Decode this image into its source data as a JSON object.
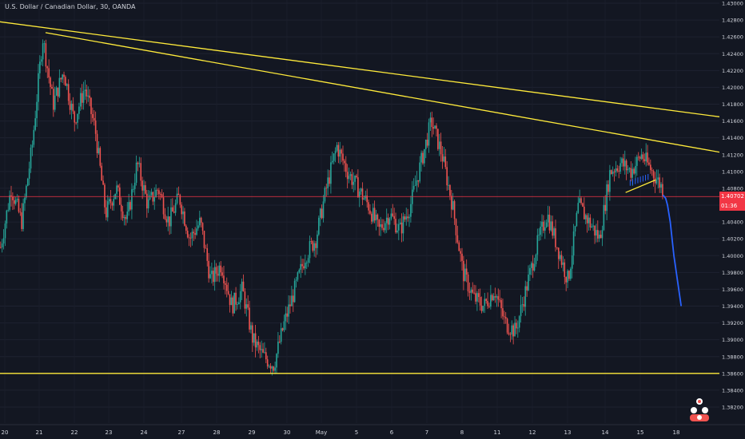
{
  "chart_title": "U.S. Dollar / Canadian Dollar, 30, OANDA",
  "colors": {
    "background": "#131722",
    "up": "#26a69a",
    "down": "#ef5350",
    "trendline": "#ffeb3b",
    "projection": "#2962ff",
    "price_line": "#f23645",
    "text": "#d1d4dc"
  },
  "price_label": {
    "value": "1.40702",
    "countdown": "01:36"
  },
  "chart_data": {
    "type": "candlestick",
    "symbol": "USDCAD",
    "interval": "30",
    "broker": "OANDA",
    "ylim": [
      1.382,
      1.43
    ],
    "yticks": [
      "1.43000",
      "1.42800",
      "1.42600",
      "1.42400",
      "1.42200",
      "1.42000",
      "1.41800",
      "1.41600",
      "1.41400",
      "1.41200",
      "1.41000",
      "1.40800",
      "1.40600",
      "1.40400",
      "1.40200",
      "1.40000",
      "1.39800",
      "1.39600",
      "1.39400",
      "1.39200",
      "1.39000",
      "1.38800",
      "1.38600",
      "1.38400",
      "1.38200"
    ],
    "xticks": [
      "20",
      "21",
      "22",
      "23",
      "24",
      "27",
      "28",
      "29",
      "30",
      "May",
      "5",
      "6",
      "7",
      "8",
      "11",
      "12",
      "13",
      "14",
      "15",
      "18"
    ],
    "price_path": [
      [
        0,
        1.401
      ],
      [
        1,
        1.408
      ],
      [
        2,
        1.404
      ],
      [
        3,
        1.413
      ],
      [
        4,
        1.426
      ],
      [
        5,
        1.418
      ],
      [
        6,
        1.422
      ],
      [
        7,
        1.416
      ],
      [
        8,
        1.42
      ],
      [
        9,
        1.415
      ],
      [
        10,
        1.405
      ],
      [
        11,
        1.408
      ],
      [
        12,
        1.404
      ],
      [
        13,
        1.411
      ],
      [
        14,
        1.406
      ],
      [
        15,
        1.408
      ],
      [
        16,
        1.404
      ],
      [
        17,
        1.407
      ],
      [
        18,
        1.402
      ],
      [
        19,
        1.404
      ],
      [
        20,
        1.397
      ],
      [
        21,
        1.399
      ],
      [
        22,
        1.394
      ],
      [
        23,
        1.396
      ],
      [
        24,
        1.39
      ],
      [
        25,
        1.388
      ],
      [
        26,
        1.387
      ],
      [
        27,
        1.392
      ],
      [
        28,
        1.396
      ],
      [
        29,
        1.4
      ],
      [
        30,
        1.402
      ],
      [
        31,
        1.408
      ],
      [
        32,
        1.413
      ],
      [
        33,
        1.41
      ],
      [
        34,
        1.408
      ],
      [
        35,
        1.406
      ],
      [
        36,
        1.403
      ],
      [
        37,
        1.405
      ],
      [
        38,
        1.403
      ],
      [
        39,
        1.406
      ],
      [
        40,
        1.411
      ],
      [
        41,
        1.416
      ],
      [
        42,
        1.412
      ],
      [
        43,
        1.406
      ],
      [
        44,
        1.398
      ],
      [
        45,
        1.395
      ],
      [
        46,
        1.394
      ],
      [
        47,
        1.396
      ],
      [
        48,
        1.392
      ],
      [
        49,
        1.391
      ],
      [
        50,
        1.396
      ],
      [
        51,
        1.401
      ],
      [
        52,
        1.405
      ],
      [
        53,
        1.401
      ],
      [
        54,
        1.397
      ],
      [
        55,
        1.406
      ],
      [
        56,
        1.404
      ],
      [
        57,
        1.402
      ],
      [
        58,
        1.41
      ],
      [
        59,
        1.411
      ],
      [
        60,
        1.41
      ],
      [
        61,
        1.412
      ],
      [
        62,
        1.41
      ],
      [
        63,
        1.408
      ]
    ],
    "trendlines": [
      {
        "from": [
          -1.5,
          1.428
        ],
        "to": [
          79.0,
          1.4165
        ]
      },
      {
        "from": [
          5.0,
          1.4265
        ],
        "to": [
          79.0,
          1.4123
        ]
      },
      {
        "from": [
          -1.5,
          1.386
        ],
        "to": [
          79.0,
          1.386
        ]
      },
      {
        "from": [
          68.7,
          1.4075
        ],
        "to": [
          72.0,
          1.409
        ]
      }
    ],
    "price_line": 1.40702,
    "projection": [
      [
        72.8,
        1.4072
      ],
      [
        73.1,
        1.4068
      ],
      [
        73.3,
        1.406
      ],
      [
        73.6,
        1.404
      ],
      [
        74.0,
        1.4
      ],
      [
        74.4,
        1.397
      ],
      [
        74.8,
        1.394
      ]
    ]
  }
}
